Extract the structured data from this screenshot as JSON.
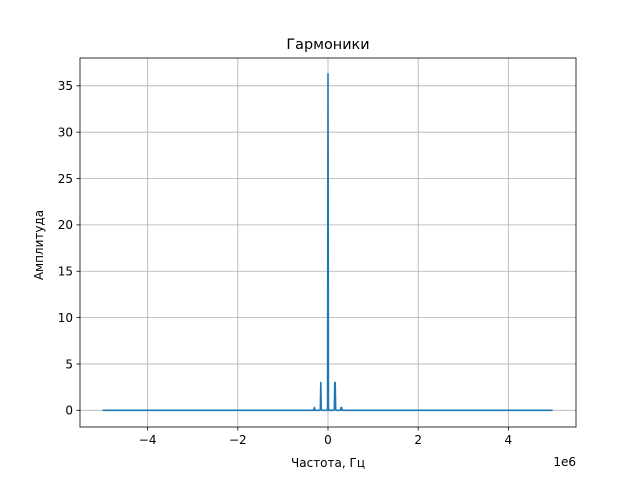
{
  "chart_data": {
    "type": "line",
    "title": "Гармоники",
    "xlabel": "Частота, Гц",
    "ylabel": "Амплитуда",
    "x_offset_label": "1e6",
    "xlim": [
      -5.5,
      5.5
    ],
    "ylim": [
      -1.8,
      38
    ],
    "grid": true,
    "x_ticks": [
      -4,
      -2,
      0,
      2,
      4
    ],
    "x_tick_labels": [
      "−4",
      "−2",
      "0",
      "2",
      "4"
    ],
    "y_ticks": [
      0,
      5,
      10,
      15,
      20,
      25,
      30,
      35
    ],
    "y_tick_labels": [
      "0",
      "5",
      "10",
      "15",
      "20",
      "25",
      "30",
      "35"
    ],
    "series": [
      {
        "color": "#1f77b4",
        "x": [
          -5.0,
          -0.36,
          -0.34,
          -0.32,
          -0.3,
          -0.3,
          -0.29,
          -0.28,
          -0.2,
          -0.18,
          -0.17,
          -0.16,
          -0.15,
          -0.14,
          -0.13,
          -0.02,
          -0.01,
          0.0,
          0.01,
          0.02,
          0.13,
          0.14,
          0.15,
          0.16,
          0.17,
          0.18,
          0.28,
          0.29,
          0.3,
          0.32,
          0.34,
          4.98
        ],
        "y": [
          0,
          0,
          0,
          0,
          0.3,
          0.3,
          0,
          0,
          0,
          0,
          0.1,
          3.0,
          0.1,
          0,
          0,
          0,
          0.2,
          36.3,
          0.2,
          0,
          0,
          0.1,
          3.0,
          3.0,
          0.1,
          0,
          0,
          0.3,
          0.3,
          0,
          0,
          0
        ]
      }
    ]
  }
}
